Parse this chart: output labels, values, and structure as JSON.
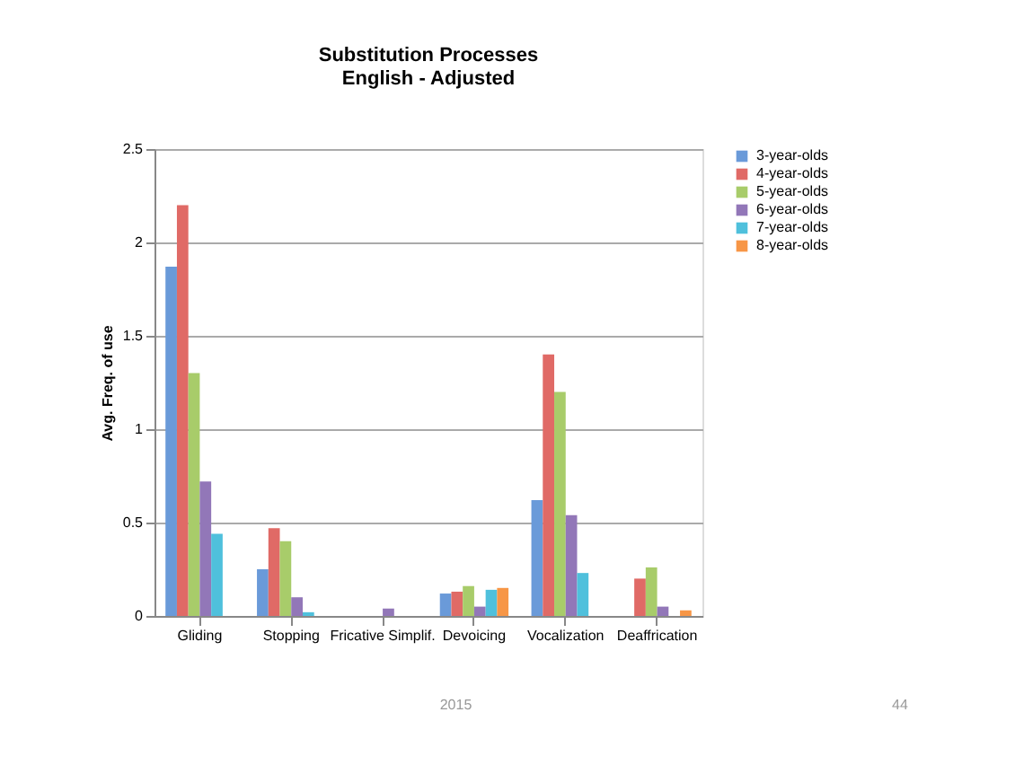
{
  "chart_data": {
    "type": "bar",
    "title": "Substitution Processes\nEnglish - Adjusted",
    "ylabel": "Avg. Freq. of use",
    "categories": [
      "Gliding",
      "Stopping",
      "Fricative Simplif.",
      "Devoicing",
      "Vocalization",
      "Deaffrication"
    ],
    "series": [
      {
        "name": "3-year-olds",
        "color": "#6a9ad9",
        "values": [
          1.87,
          0.25,
          0,
          0.12,
          0.62,
          0
        ]
      },
      {
        "name": "4-year-olds",
        "color": "#e06a66",
        "values": [
          2.2,
          0.47,
          0,
          0.13,
          1.4,
          0.2
        ]
      },
      {
        "name": "5-year-olds",
        "color": "#a8cc6a",
        "values": [
          1.3,
          0.4,
          0,
          0.16,
          1.2,
          0.26
        ]
      },
      {
        "name": "6-year-olds",
        "color": "#9277b8",
        "values": [
          0.72,
          0.1,
          0.04,
          0.05,
          0.54,
          0.05
        ]
      },
      {
        "name": "7-year-olds",
        "color": "#4fc0dc",
        "values": [
          0.44,
          0.02,
          0,
          0.14,
          0.23,
          0
        ]
      },
      {
        "name": "8-year-olds",
        "color": "#f79646",
        "values": [
          0,
          0,
          0,
          0.15,
          0,
          0.03
        ]
      }
    ],
    "ylim": [
      0,
      2.5
    ],
    "yticks": [
      0,
      0.5,
      1,
      1.5,
      2,
      2.5
    ],
    "grid": "y",
    "legend": "right",
    "annotations": [
      "2015",
      "44"
    ]
  }
}
